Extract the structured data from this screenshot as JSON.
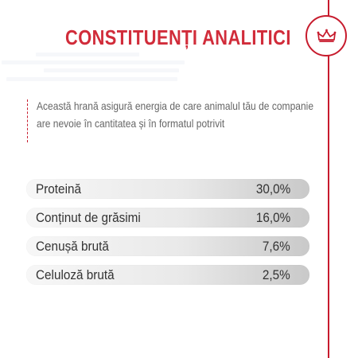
{
  "header": {
    "title": "CONSTITUENȚI ANALITICI",
    "logo_icon": "crown-icon",
    "accent_color": "#d12c3a"
  },
  "description": {
    "text": "Această hrană asigură energia de care animalul tău de companie are nevoie în cantitatea și în formatul potrivit"
  },
  "nutrients": [
    {
      "label": "Proteină",
      "value": "30,0%"
    },
    {
      "label": "Conținut de grăsimi",
      "value": "16,0%"
    },
    {
      "label": "Cenușă brută",
      "value": "7,6%"
    },
    {
      "label": "Celuloză brută",
      "value": "2,5%"
    }
  ]
}
